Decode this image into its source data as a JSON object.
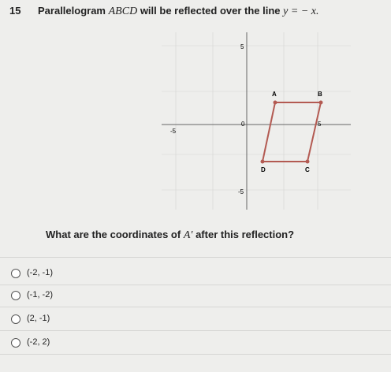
{
  "header": {
    "number": "15",
    "parts": [
      "Parallelogram",
      "ABCD",
      "will be reflected over the line",
      "y = − x."
    ]
  },
  "graph": {
    "y_top": "5",
    "x_left": "-5",
    "origin": "0",
    "x_right": "5",
    "y_bottom": "-5",
    "points": [
      "A",
      "B",
      "C",
      "D"
    ]
  },
  "question": {
    "parts": [
      "What are the coordinates of",
      "A′",
      "after this reflection?"
    ]
  },
  "options": [
    "(-2, -1)",
    "(-1, -2)",
    "(2, -1)",
    "(-2, 2)"
  ]
}
